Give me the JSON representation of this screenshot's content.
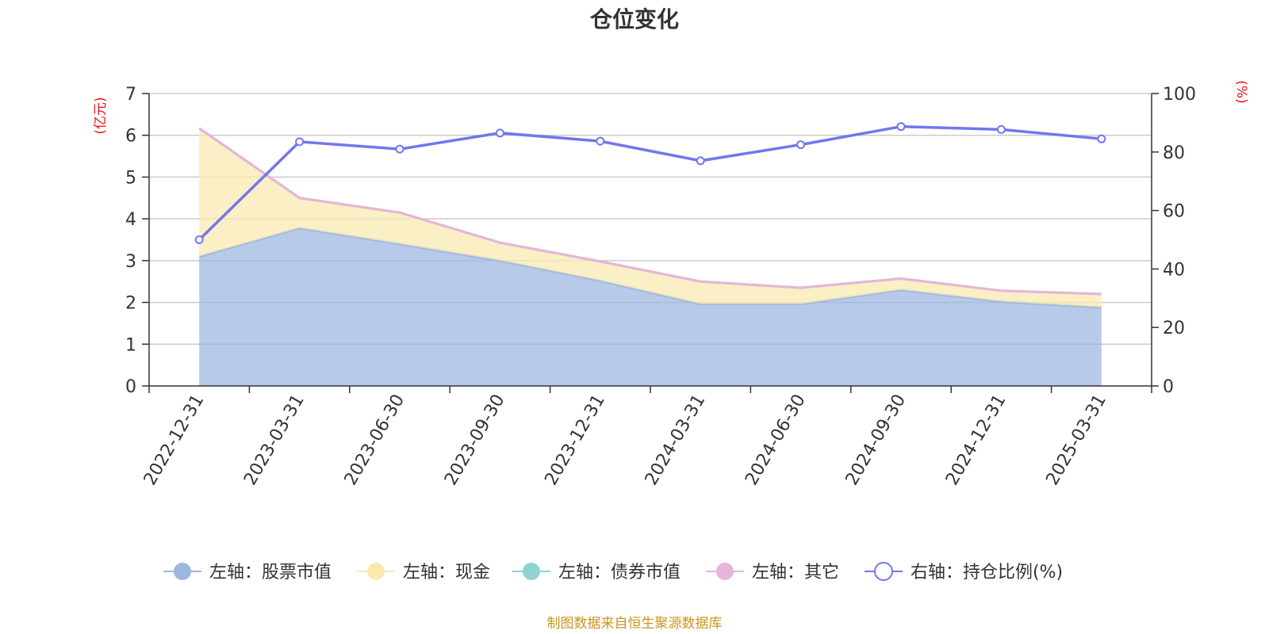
{
  "chart_data": {
    "type": "area",
    "title": "仓位变化",
    "left_unit": "(亿元)",
    "right_unit": "(%)",
    "categories": [
      "2022-12-31",
      "2023-03-31",
      "2023-06-30",
      "2023-09-30",
      "2023-12-31",
      "2024-03-31",
      "2024-06-30",
      "2024-09-30",
      "2024-12-31",
      "2025-03-31"
    ],
    "y_left": {
      "min": 0,
      "max": 7,
      "ticks": [
        "0",
        "1",
        "2",
        "3",
        "4",
        "5",
        "6",
        "7"
      ]
    },
    "y_right": {
      "min": 0,
      "max": 100,
      "ticks": [
        "0",
        "20",
        "40",
        "60",
        "80",
        "100"
      ]
    },
    "grid": true,
    "legend_position": "bottom",
    "series": [
      {
        "name": "左轴：股票市值",
        "axis": "left",
        "stack": true,
        "color": "#9bb6e0",
        "values": [
          3.1,
          3.78,
          3.4,
          3.0,
          2.52,
          1.96,
          1.96,
          2.3,
          2.02,
          1.88
        ]
      },
      {
        "name": "左轴：现金",
        "axis": "left",
        "stack": true,
        "color": "#f9e9b1",
        "values": [
          3.07,
          0.72,
          0.75,
          0.43,
          0.46,
          0.54,
          0.39,
          0.27,
          0.26,
          0.32
        ]
      },
      {
        "name": "左轴：债券市值",
        "axis": "left",
        "stack": true,
        "color": "#8fd3d3",
        "values": [
          0,
          0,
          0,
          0,
          0,
          0,
          0,
          0,
          0,
          0
        ]
      },
      {
        "name": "左轴：其它",
        "axis": "left",
        "stack": true,
        "color": "#e8b4d8",
        "values": [
          0,
          0,
          0,
          0,
          0,
          0,
          0,
          0,
          0,
          0
        ]
      },
      {
        "name": "右轴：持仓比例(%)",
        "axis": "right",
        "type": "line",
        "color": "#7376ee",
        "values": [
          50,
          83.5,
          81,
          86.5,
          83.7,
          77,
          82.5,
          88.7,
          87.7,
          84.5
        ]
      }
    ],
    "source_note": "制图数据来自恒生聚源数据库"
  }
}
